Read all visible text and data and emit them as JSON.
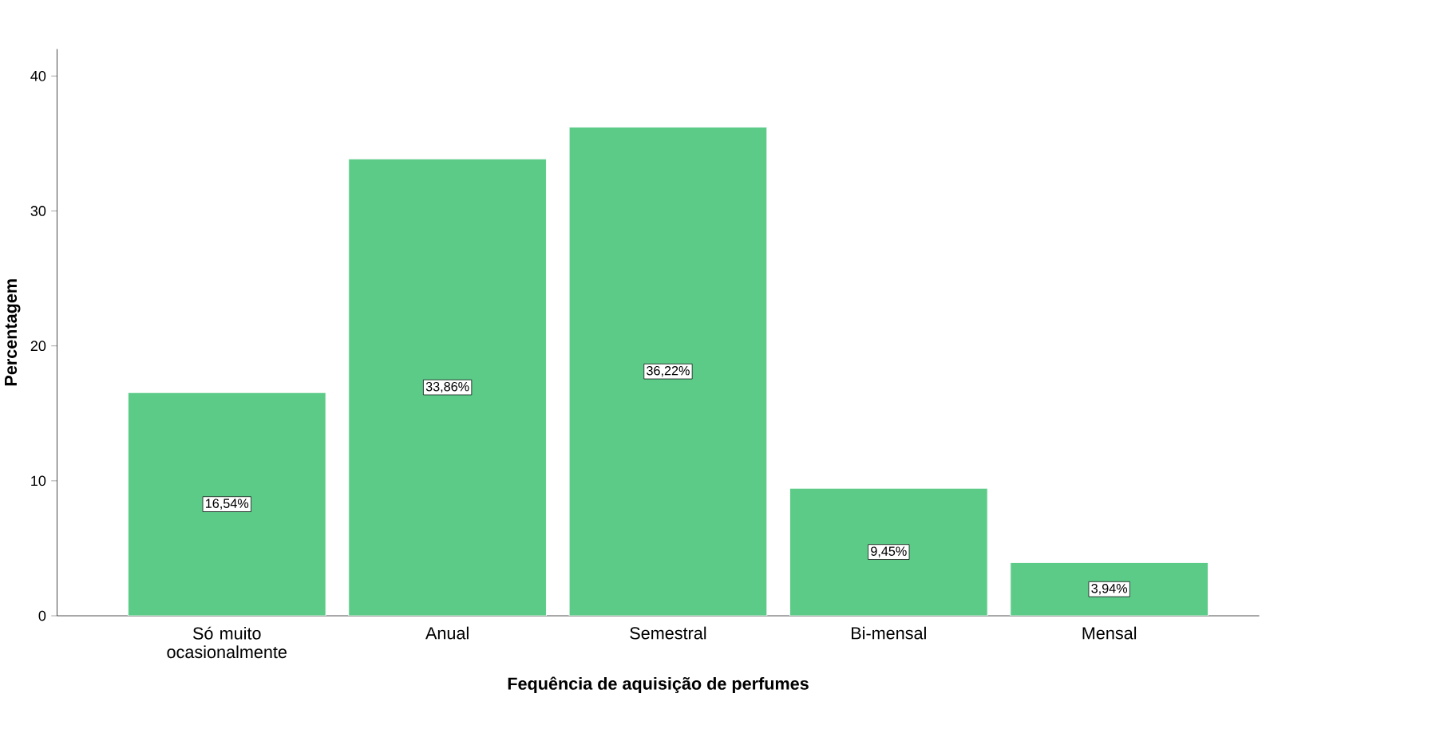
{
  "chart_data": {
    "type": "bar",
    "xlabel": "Fequência de aquisição de perfumes",
    "ylabel": "Percentagem",
    "categories": [
      "Só muito ocasionalmente",
      "Anual",
      "Semestral",
      "Bi-mensal",
      "Mensal"
    ],
    "values": [
      16.54,
      33.86,
      36.22,
      9.45,
      3.94
    ],
    "value_labels": [
      "16,54%",
      "33,86%",
      "36,22%",
      "9,45%",
      "3,94%"
    ],
    "color": "#5ccb88",
    "ylim": [
      0,
      42
    ],
    "yticks": [
      0,
      10,
      20,
      30,
      40
    ],
    "grid": false
  }
}
